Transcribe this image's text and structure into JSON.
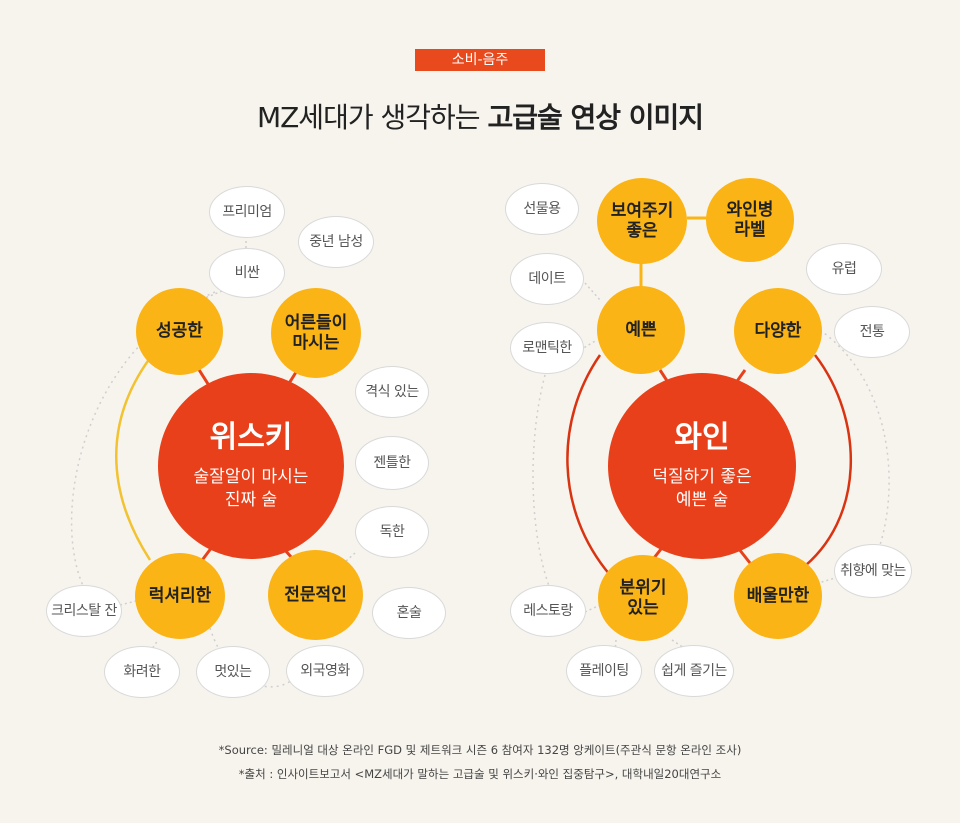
{
  "header": {
    "tag": "소비-음주",
    "title_regular": "MZ세대가 생각하는",
    "title_bold": "고급술 연상 이미지"
  },
  "whisky": {
    "name": "위스키",
    "desc_line1": "술잘알이 마시는",
    "desc_line2": "진짜 술",
    "traits": {
      "successful": "성공한",
      "adults": [
        "어른들이",
        "마시는"
      ],
      "luxurious": "럭셔리한",
      "professional": "전문적인"
    },
    "keywords": {
      "premium": "프리미엄",
      "expensive": "비싼",
      "middle_aged_man": "중년 남성",
      "classy": "격식 있는",
      "gentlemanly": "젠틀한",
      "strong": "독한",
      "drinking_alone": "혼술",
      "crystal_glass": "크리스탈 잔",
      "fancy": "화려한",
      "cool": "멋있는",
      "foreign_movie": "외국영화"
    }
  },
  "wine": {
    "name": "와인",
    "desc_line1": "덕질하기 좋은",
    "desc_line2": "예쁜 술",
    "traits": {
      "good_to_show": [
        "보여주기",
        "좋은"
      ],
      "wine_label": [
        "와인병",
        "라벨"
      ],
      "pretty": "예쁜",
      "diverse": "다양한",
      "atmosphere": [
        "분위기",
        "있는"
      ],
      "worth_learning": "배울만한"
    },
    "keywords": {
      "gift": "선물용",
      "date": "데이트",
      "romantic": "로맨틱한",
      "europe": "유럽",
      "tradition": "전통",
      "taste": "취향에 맞는",
      "restaurant": "레스토랑",
      "plating": "플레이팅",
      "easy_to_enjoy": "쉽게 즐기는"
    }
  },
  "footer": {
    "source": "*Source: 밀레니얼 대상 온라인 FGD 및 제트워크 시즌 6 참여자 132명 앙케이트(주관식 문항 온라인 조사)",
    "origin": "*출처 : 인사이트보고서 <MZ세대가 말하는 고급술 및 위스키·와인 집중탐구>, 대학내일20대연구소"
  },
  "colors": {
    "tag": "#e84a1e",
    "main_circle": "#e8401a",
    "trait_circle": "#fbb415",
    "whisky_arc": "#f2c230",
    "wine_arc": "#d93412",
    "keyword_border": "#d9d9d9",
    "background": "#f7f4ee"
  }
}
